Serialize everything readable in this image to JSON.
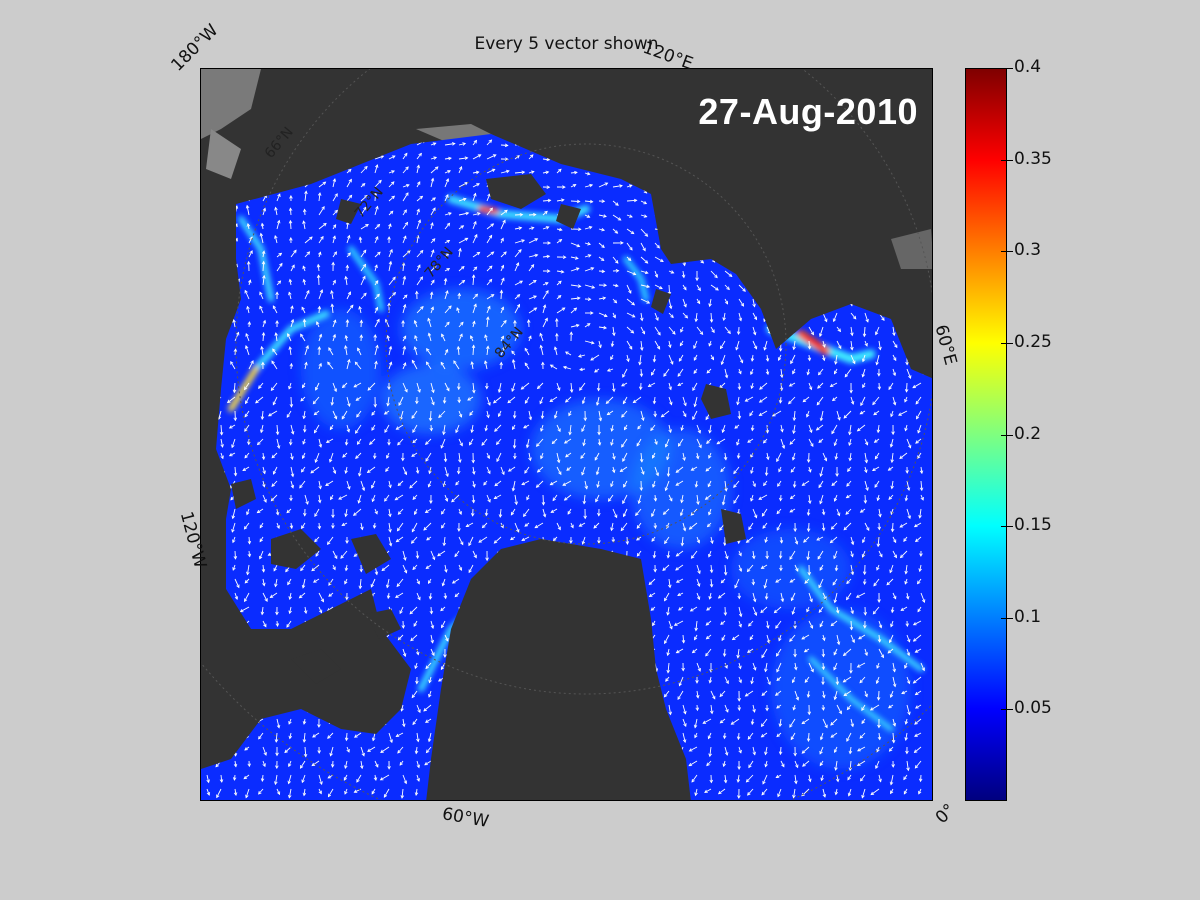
{
  "title": "Every 5 vector shown",
  "date": "27-Aug-2010",
  "edge_longitudes": {
    "top_left": "180°W",
    "top_right": "120°E",
    "left": "120°W",
    "right": "60°E",
    "bottom": "60°W",
    "bottom_right": "0°"
  },
  "inner_latitudes": [
    "66°N",
    "72°N",
    "78°N",
    "84°N"
  ],
  "colorbar": {
    "min": 0,
    "max": 0.4,
    "ticks": [
      "0.4",
      "0.35",
      "0.3",
      "0.25",
      "0.2",
      "0.15",
      "0.1",
      "0.05"
    ],
    "tick_values": [
      0.4,
      0.35,
      0.3,
      0.25,
      0.2,
      0.15,
      0.1,
      0.05
    ],
    "colormap": "jet"
  },
  "colors": {
    "background": "#cccccc",
    "land": "#333333",
    "land_outside": "#7a7a7a",
    "ocean_base": "#0a2cff",
    "vectors": "#ffffff"
  }
}
